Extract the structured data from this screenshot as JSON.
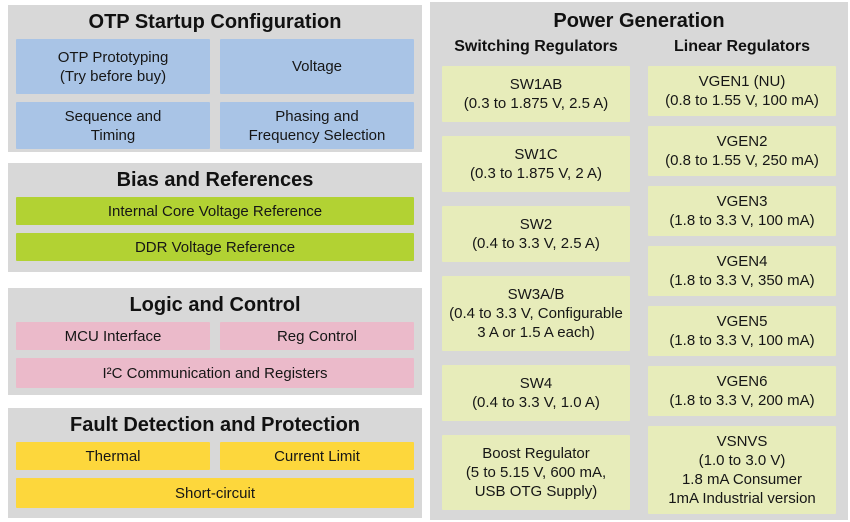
{
  "left": {
    "otp": {
      "title": "OTP Startup Configuration",
      "boxes": [
        "OTP Prototyping\n(Try before buy)",
        "Voltage",
        "Sequence and\nTiming",
        "Phasing and\nFrequency Selection"
      ]
    },
    "bias": {
      "title": "Bias and References",
      "boxes": [
        "Internal Core Voltage Reference",
        "DDR Voltage Reference"
      ]
    },
    "logic": {
      "title": "Logic and Control",
      "boxes": [
        "MCU Interface",
        "Reg Control",
        "I²C Communication and Registers"
      ]
    },
    "fault": {
      "title": "Fault Detection and Protection",
      "boxes": [
        "Thermal",
        "Current Limit",
        "Short-circuit"
      ]
    }
  },
  "power": {
    "title": "Power Generation",
    "switching": {
      "header": "Switching Regulators",
      "boxes": [
        "SW1AB\n(0.3 to 1.875 V, 2.5 A)",
        "SW1C\n(0.3 to 1.875 V, 2 A)",
        "SW2\n(0.4 to 3.3 V, 2.5 A)",
        "SW3A/B\n(0.4 to 3.3 V, Configurable\n3 A or 1.5 A each)",
        "SW4\n(0.4 to 3.3 V, 1.0 A)",
        "Boost Regulator\n(5 to 5.15 V, 600 mA,\nUSB OTG Supply)"
      ]
    },
    "linear": {
      "header": "Linear Regulators",
      "boxes": [
        "VGEN1 (NU)\n(0.8 to 1.55 V, 100 mA)",
        "VGEN2\n(0.8 to 1.55 V, 250 mA)",
        "VGEN3\n(1.8 to 3.3 V, 100 mA)",
        "VGEN4\n(1.8 to 3.3 V, 350 mA)",
        "VGEN5\n(1.8 to 3.3 V, 100 mA)",
        "VGEN6\n(1.8 to 3.3 V, 200 mA)",
        "VSNVS\n(1.0 to 3.0 V)\n1.8 mA Consumer\n1mA Industrial version"
      ]
    }
  },
  "colors": {
    "panel_bg": "#d8d8d8",
    "otp_blue": "#a9c4e6",
    "bias_green": "#b2d233",
    "logic_pink": "#ebbaca",
    "fault_yellow": "#fdd73c",
    "power_pale_green": "#e7ecba",
    "text": "#1a1a1a"
  }
}
